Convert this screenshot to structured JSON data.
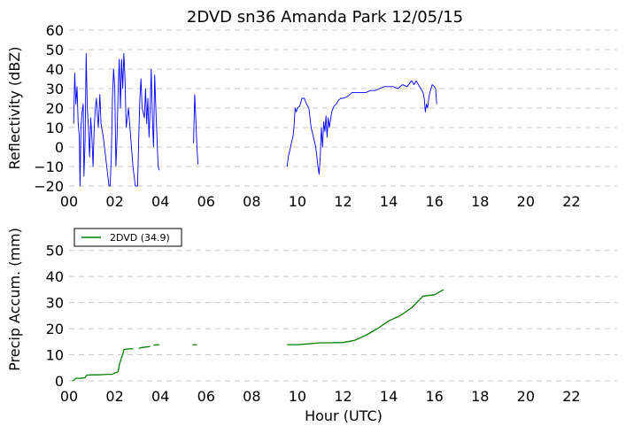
{
  "chart_data": [
    {
      "type": "line",
      "title": "2DVD sn36 Amanda Park 12/05/15",
      "xlabel": "",
      "ylabel": "Reflectivity (dBZ)",
      "xlim": [
        0,
        24
      ],
      "ylim": [
        -20,
        60
      ],
      "xticks": [
        0,
        2,
        4,
        6,
        8,
        10,
        12,
        14,
        16,
        18,
        20,
        22
      ],
      "xtick_labels": [
        "00",
        "02",
        "04",
        "06",
        "08",
        "10",
        "12",
        "14",
        "16",
        "18",
        "20",
        "22"
      ],
      "yticks": [
        -20,
        -10,
        0,
        10,
        20,
        30,
        40,
        50,
        60
      ],
      "ytick_labels": [
        "−20",
        "−10",
        "0",
        "10",
        "20",
        "30",
        "40",
        "50",
        "60"
      ],
      "grid": true,
      "color": "#0000ff",
      "series": [
        {
          "name": "",
          "segments": [
            [
              [
                0.2,
                12
              ],
              [
                0.25,
                38
              ],
              [
                0.3,
                22
              ],
              [
                0.35,
                31
              ],
              [
                0.4,
                12
              ],
              [
                0.45,
                5
              ],
              [
                0.48,
                -20
              ],
              [
                0.52,
                10
              ],
              [
                0.57,
                18
              ],
              [
                0.62,
                22
              ],
              [
                0.65,
                -15
              ],
              [
                0.7,
                3
              ],
              [
                0.75,
                48
              ],
              [
                0.8,
                20
              ],
              [
                0.85,
                10
              ],
              [
                0.9,
                -5
              ],
              [
                0.95,
                15
              ],
              [
                1.0,
                5
              ],
              [
                1.05,
                -10
              ],
              [
                1.1,
                10
              ],
              [
                1.15,
                20
              ],
              [
                1.2,
                25
              ],
              [
                1.25,
                15
              ],
              [
                1.28,
                10
              ],
              [
                1.35,
                27
              ],
              [
                1.4,
                12
              ],
              [
                1.5,
                5
              ],
              [
                1.6,
                -5
              ],
              [
                1.7,
                -15
              ],
              [
                1.75,
                -20
              ],
              [
                1.8,
                -20
              ],
              [
                1.85,
                -5
              ],
              [
                1.9,
                25
              ],
              [
                1.95,
                40
              ],
              [
                2.0,
                30
              ],
              [
                2.05,
                -10
              ],
              [
                2.1,
                5
              ],
              [
                2.15,
                30
              ],
              [
                2.2,
                45
              ],
              [
                2.25,
                20
              ],
              [
                2.3,
                45
              ],
              [
                2.35,
                30
              ],
              [
                2.4,
                48
              ],
              [
                2.45,
                35
              ],
              [
                2.5,
                10
              ],
              [
                2.6,
                20
              ],
              [
                2.7,
                5
              ],
              [
                2.8,
                -10
              ],
              [
                2.9,
                -20
              ],
              [
                3.0,
                -20
              ],
              [
                3.05,
                5
              ],
              [
                3.1,
                25
              ],
              [
                3.15,
                35
              ],
              [
                3.2,
                20
              ],
              [
                3.3,
                15
              ],
              [
                3.35,
                30
              ],
              [
                3.4,
                12
              ],
              [
                3.45,
                25
              ],
              [
                3.5,
                5
              ],
              [
                3.55,
                20
              ],
              [
                3.6,
                40
              ],
              [
                3.65,
                15
              ],
              [
                3.7,
                0
              ],
              [
                3.75,
                37
              ],
              [
                3.8,
                20
              ],
              [
                3.85,
                5
              ],
              [
                3.9,
                -10
              ],
              [
                3.95,
                -12
              ]
            ],
            [
              [
                5.45,
                2
              ],
              [
                5.5,
                27
              ],
              [
                5.55,
                15
              ],
              [
                5.6,
                0
              ],
              [
                5.65,
                -9
              ]
            ],
            [
              [
                9.55,
                -10
              ],
              [
                9.6,
                -5
              ],
              [
                9.7,
                0
              ],
              [
                9.75,
                3
              ],
              [
                9.8,
                5
              ],
              [
                9.85,
                10
              ],
              [
                9.9,
                20
              ],
              [
                9.95,
                18
              ],
              [
                10.0,
                20
              ],
              [
                10.1,
                21
              ],
              [
                10.2,
                25
              ],
              [
                10.3,
                25
              ],
              [
                10.4,
                22
              ],
              [
                10.5,
                20
              ],
              [
                10.55,
                15
              ],
              [
                10.6,
                10
              ],
              [
                10.7,
                5
              ],
              [
                10.8,
                0
              ],
              [
                10.9,
                -10
              ],
              [
                10.95,
                -14
              ],
              [
                11.0,
                -5
              ],
              [
                11.05,
                10
              ],
              [
                11.1,
                0
              ],
              [
                11.15,
                13
              ],
              [
                11.2,
                8
              ],
              [
                11.25,
                16
              ],
              [
                11.3,
                5
              ],
              [
                11.35,
                15
              ],
              [
                11.4,
                10
              ],
              [
                11.5,
                18
              ],
              [
                11.6,
                21
              ],
              [
                11.7,
                22
              ],
              [
                11.8,
                24
              ],
              [
                11.9,
                25
              ],
              [
                12.0,
                25
              ],
              [
                12.2,
                26
              ],
              [
                12.4,
                28
              ],
              [
                12.6,
                28
              ],
              [
                12.8,
                28
              ],
              [
                13.0,
                28
              ],
              [
                13.2,
                29
              ],
              [
                13.4,
                29
              ],
              [
                13.6,
                30
              ],
              [
                13.8,
                31
              ],
              [
                14.0,
                31
              ],
              [
                14.2,
                31
              ],
              [
                14.4,
                30
              ],
              [
                14.6,
                32
              ],
              [
                14.8,
                31
              ],
              [
                15.0,
                34
              ],
              [
                15.1,
                32
              ],
              [
                15.2,
                34
              ],
              [
                15.3,
                32
              ],
              [
                15.4,
                30
              ],
              [
                15.5,
                28
              ],
              [
                15.55,
                25
              ],
              [
                15.6,
                18
              ],
              [
                15.65,
                22
              ],
              [
                15.7,
                20
              ],
              [
                15.75,
                25
              ],
              [
                15.8,
                28
              ],
              [
                15.9,
                32
              ],
              [
                16.0,
                31
              ],
              [
                16.05,
                30
              ],
              [
                16.1,
                22
              ]
            ]
          ]
        }
      ]
    },
    {
      "type": "line",
      "title": "",
      "xlabel": "Hour (UTC)",
      "ylabel": "Precip Accum. (mm)",
      "xlim": [
        0,
        24
      ],
      "ylim": [
        0,
        55
      ],
      "xticks": [
        0,
        2,
        4,
        6,
        8,
        10,
        12,
        14,
        16,
        18,
        20,
        22
      ],
      "xtick_labels": [
        "00",
        "02",
        "04",
        "06",
        "08",
        "10",
        "12",
        "14",
        "16",
        "18",
        "20",
        "22"
      ],
      "yticks": [
        0,
        10,
        20,
        30,
        40,
        50
      ],
      "ytick_labels": [
        "0",
        "10",
        "20",
        "30",
        "40",
        "50"
      ],
      "grid": true,
      "color": "#008000",
      "legend": {
        "position": "top-left",
        "label": "2DVD (34.9)"
      },
      "series": [
        {
          "name": "2DVD (34.9)",
          "segments": [
            [
              [
                0.15,
                0
              ],
              [
                0.25,
                0.5
              ],
              [
                0.3,
                1
              ],
              [
                0.5,
                1
              ],
              [
                0.7,
                1.2
              ],
              [
                0.75,
                2
              ],
              [
                0.8,
                2.2
              ],
              [
                1.0,
                2.3
              ],
              [
                1.3,
                2.3
              ],
              [
                1.5,
                2.4
              ],
              [
                1.7,
                2.5
              ],
              [
                1.9,
                2.5
              ],
              [
                2.0,
                3
              ],
              [
                2.15,
                3.5
              ],
              [
                2.2,
                6
              ],
              [
                2.3,
                9
              ],
              [
                2.35,
                10
              ],
              [
                2.4,
                12
              ],
              [
                2.5,
                12.2
              ],
              [
                2.7,
                12.3
              ],
              [
                2.8,
                12.3
              ]
            ],
            [
              [
                3.05,
                12.5
              ],
              [
                3.2,
                12.8
              ],
              [
                3.4,
                13.0
              ],
              [
                3.55,
                13.2
              ]
            ],
            [
              [
                3.7,
                13.6
              ],
              [
                3.8,
                13.8
              ],
              [
                3.95,
                13.9
              ]
            ],
            [
              [
                5.4,
                13.8
              ],
              [
                5.6,
                13.9
              ]
            ],
            [
              [
                9.55,
                13.9
              ],
              [
                10.0,
                13.9
              ],
              [
                10.5,
                14.2
              ],
              [
                11.0,
                14.6
              ],
              [
                11.5,
                14.6
              ],
              [
                12.0,
                14.7
              ],
              [
                12.5,
                15.5
              ],
              [
                13.0,
                17.5
              ],
              [
                13.5,
                20
              ],
              [
                14.0,
                23
              ],
              [
                14.5,
                25
              ],
              [
                15.0,
                28
              ],
              [
                15.5,
                32.5
              ],
              [
                16.0,
                33
              ],
              [
                16.3,
                34.5
              ],
              [
                16.4,
                34.9
              ]
            ]
          ]
        }
      ]
    }
  ]
}
